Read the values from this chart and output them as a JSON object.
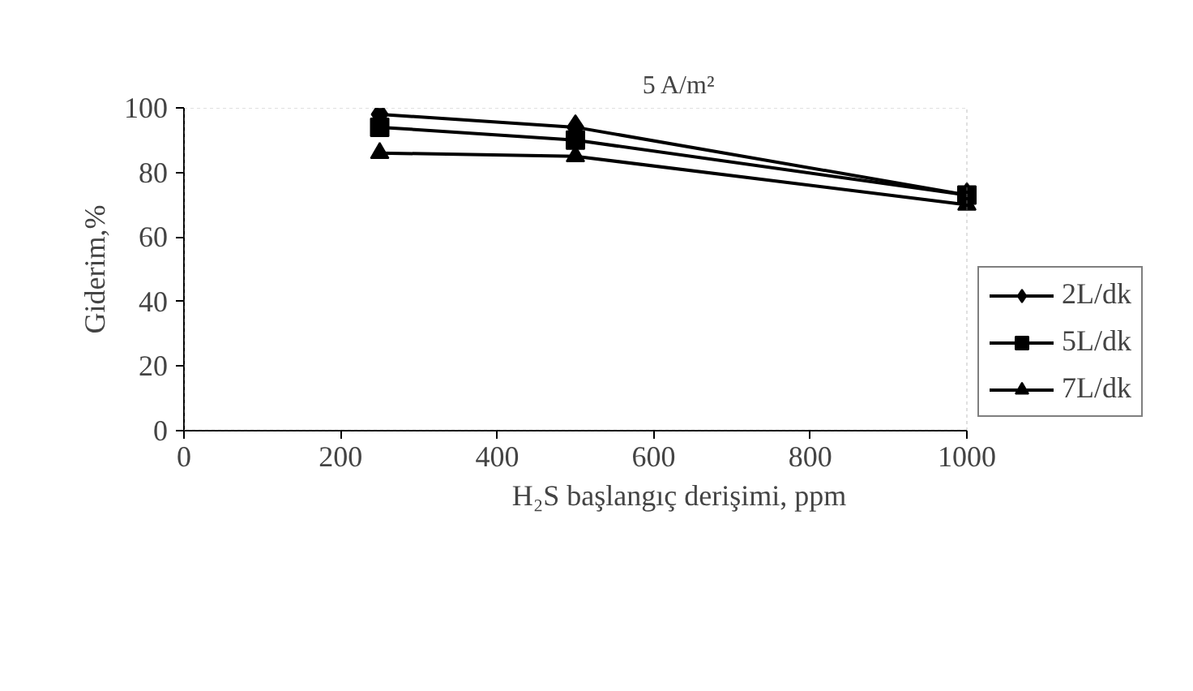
{
  "chart_data": {
    "type": "line",
    "title": "5 A/m²",
    "xlabel": "H₂S başlangıç derişimi, ppm",
    "ylabel": "Giderim,%",
    "x": [
      250,
      500,
      1000
    ],
    "xlim": [
      0,
      1000
    ],
    "xticks": [
      0,
      200,
      400,
      600,
      800,
      1000
    ],
    "ylim": [
      0,
      100
    ],
    "yticks": [
      0,
      20,
      40,
      60,
      80,
      100
    ],
    "grid": false,
    "legend": "right",
    "line_style": "solid",
    "series": [
      {
        "name": "2L/dk",
        "color": "#000000",
        "marker": "diamond",
        "values": [
          98,
          94,
          73
        ]
      },
      {
        "name": "5L/dk",
        "color": "#000000",
        "marker": "square",
        "values": [
          94,
          90,
          73
        ]
      },
      {
        "name": "7L/dk",
        "color": "#000000",
        "marker": "triangle",
        "values": [
          86,
          85,
          70
        ]
      }
    ]
  }
}
